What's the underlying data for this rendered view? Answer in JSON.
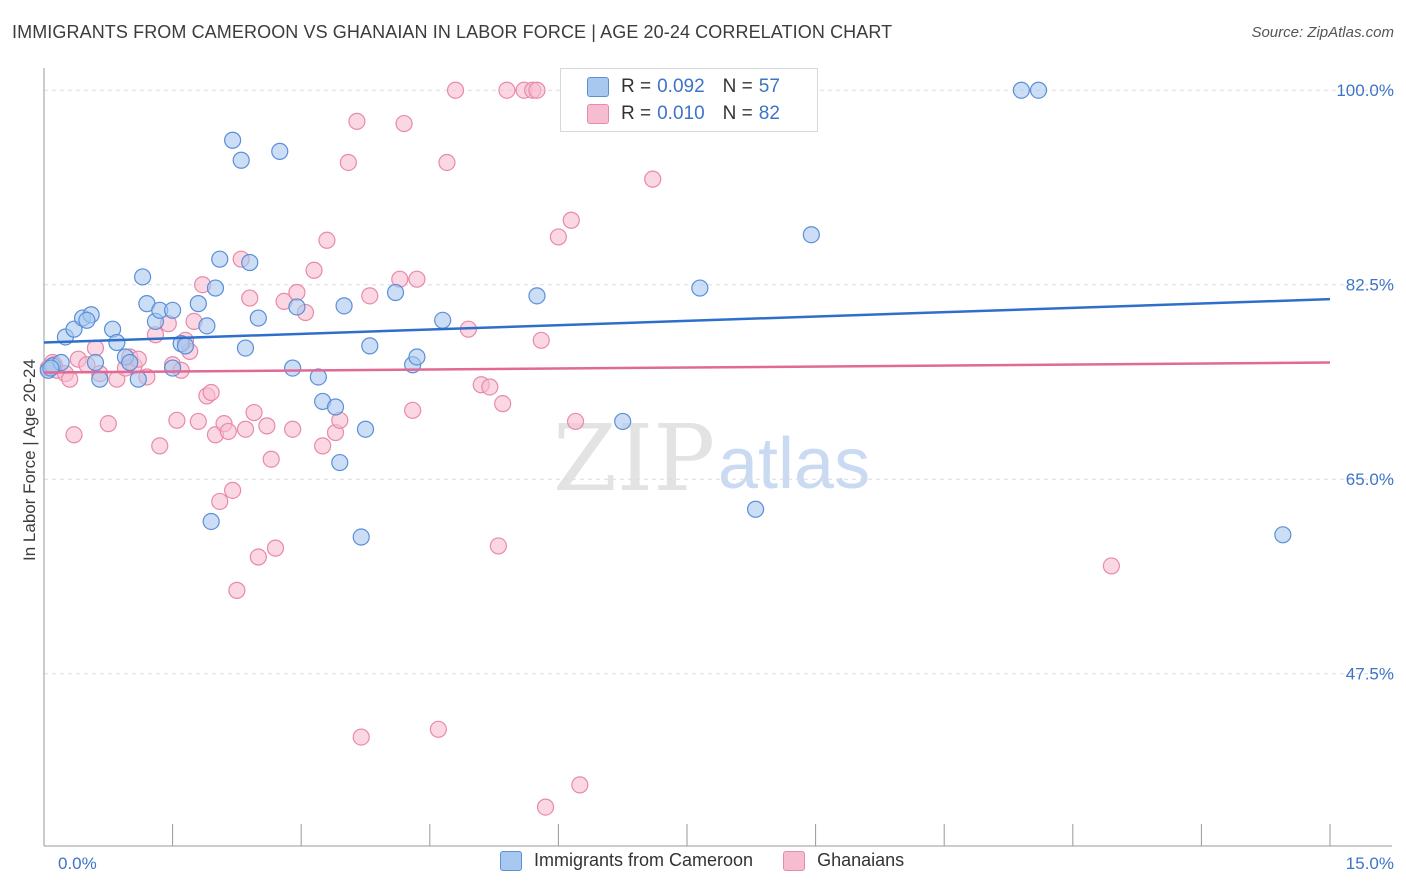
{
  "title": "IMMIGRANTS FROM CAMEROON VS GHANAIAN IN LABOR FORCE | AGE 20-24 CORRELATION CHART",
  "source": "Source: ZipAtlas.com",
  "watermark": {
    "zip": "ZIP",
    "atlas": "atlas"
  },
  "legend": {
    "r_label": "R =",
    "n_label": "N =",
    "series1": {
      "r": "0.092",
      "n": "57"
    },
    "series2": {
      "r": "0.010",
      "n": "82"
    }
  },
  "bottom_legend": {
    "series1": "Immigrants from Cameroon",
    "series2": "Ghanaians"
  },
  "colors": {
    "blue_fill": "#a9c8f0",
    "blue_stroke": "#5b8fd8",
    "blue_line": "#2f6fcc",
    "pink_fill": "#f6bcd0",
    "pink_stroke": "#e88aa8",
    "pink_line": "#e06a95",
    "tick_text": "#3d74c8",
    "grid": "#dcdcdc"
  },
  "chart_data": {
    "type": "scatter",
    "title": "IMMIGRANTS FROM CAMEROON VS GHANAIAN IN LABOR FORCE | AGE 20-24 CORRELATION CHART",
    "xlabel": "",
    "ylabel": "In Labor Force | Age 20-24",
    "xlim": [
      0,
      15
    ],
    "ylim": [
      32,
      102
    ],
    "x_tick_labels": [
      "0.0%",
      "15.0%"
    ],
    "y_ticks": [
      47.5,
      65.0,
      82.5,
      100.0
    ],
    "y_tick_labels": [
      "47.5%",
      "65.0%",
      "82.5%",
      "100.0%"
    ],
    "series": [
      {
        "name": "Immigrants from Cameroon",
        "trend": [
          [
            0,
            77.3
          ],
          [
            15,
            81.2
          ]
        ],
        "points": [
          [
            0.05,
            74.8
          ],
          [
            0.1,
            75.2
          ],
          [
            0.2,
            75.5
          ],
          [
            0.25,
            77.8
          ],
          [
            0.35,
            78.5
          ],
          [
            0.45,
            79.5
          ],
          [
            0.55,
            79.8
          ],
          [
            0.6,
            75.5
          ],
          [
            0.65,
            74.0
          ],
          [
            0.8,
            78.5
          ],
          [
            0.85,
            77.3
          ],
          [
            0.95,
            76.0
          ],
          [
            1.0,
            75.5
          ],
          [
            1.1,
            74.0
          ],
          [
            1.15,
            83.2
          ],
          [
            1.2,
            80.8
          ],
          [
            1.3,
            79.2
          ],
          [
            1.35,
            80.2
          ],
          [
            1.5,
            80.2
          ],
          [
            1.5,
            75.0
          ],
          [
            1.6,
            77.2
          ],
          [
            1.65,
            77.0
          ],
          [
            1.8,
            80.8
          ],
          [
            1.9,
            78.8
          ],
          [
            1.95,
            61.2
          ],
          [
            2.0,
            82.2
          ],
          [
            2.05,
            84.8
          ],
          [
            2.2,
            95.5
          ],
          [
            2.3,
            93.7
          ],
          [
            2.35,
            76.8
          ],
          [
            2.4,
            84.5
          ],
          [
            2.5,
            79.5
          ],
          [
            2.75,
            94.5
          ],
          [
            2.9,
            75.0
          ],
          [
            2.95,
            80.5
          ],
          [
            3.2,
            74.2
          ],
          [
            3.25,
            72.0
          ],
          [
            3.4,
            71.5
          ],
          [
            3.45,
            66.5
          ],
          [
            3.5,
            80.6
          ],
          [
            3.7,
            59.8
          ],
          [
            3.75,
            69.5
          ],
          [
            3.8,
            77.0
          ],
          [
            4.1,
            81.8
          ],
          [
            4.3,
            75.3
          ],
          [
            4.35,
            76.0
          ],
          [
            4.65,
            79.3
          ],
          [
            5.75,
            81.5
          ],
          [
            6.75,
            70.2
          ],
          [
            7.65,
            82.2
          ],
          [
            8.3,
            62.3
          ],
          [
            8.95,
            87.0
          ],
          [
            11.4,
            100.0
          ],
          [
            11.6,
            100.0
          ],
          [
            14.45,
            60.0
          ],
          [
            0.08,
            75.0
          ],
          [
            0.5,
            79.3
          ]
        ]
      },
      {
        "name": "Ghanaians",
        "trend": [
          [
            0,
            74.6
          ],
          [
            15,
            75.5
          ]
        ],
        "points": [
          [
            0.05,
            75.0
          ],
          [
            0.1,
            75.5
          ],
          [
            0.15,
            74.8
          ],
          [
            0.25,
            74.5
          ],
          [
            0.35,
            69.0
          ],
          [
            0.4,
            75.8
          ],
          [
            0.5,
            75.3
          ],
          [
            0.6,
            76.8
          ],
          [
            0.65,
            74.5
          ],
          [
            0.75,
            70.0
          ],
          [
            0.85,
            74.0
          ],
          [
            0.95,
            75.0
          ],
          [
            1.0,
            76.0
          ],
          [
            1.05,
            75.2
          ],
          [
            1.1,
            75.8
          ],
          [
            1.2,
            74.2
          ],
          [
            1.3,
            78.0
          ],
          [
            1.35,
            68.0
          ],
          [
            1.45,
            79.0
          ],
          [
            1.5,
            75.3
          ],
          [
            1.55,
            70.3
          ],
          [
            1.6,
            74.8
          ],
          [
            1.65,
            77.5
          ],
          [
            1.75,
            79.2
          ],
          [
            1.8,
            70.2
          ],
          [
            1.85,
            82.5
          ],
          [
            1.9,
            72.5
          ],
          [
            1.95,
            72.8
          ],
          [
            2.0,
            69.0
          ],
          [
            2.05,
            63.0
          ],
          [
            2.1,
            70.0
          ],
          [
            2.15,
            69.3
          ],
          [
            2.2,
            64.0
          ],
          [
            2.25,
            55.0
          ],
          [
            2.3,
            84.8
          ],
          [
            2.4,
            81.3
          ],
          [
            2.45,
            71.0
          ],
          [
            2.5,
            58.0
          ],
          [
            2.6,
            69.8
          ],
          [
            2.65,
            66.8
          ],
          [
            2.7,
            58.8
          ],
          [
            2.8,
            81.0
          ],
          [
            2.9,
            69.5
          ],
          [
            2.95,
            81.8
          ],
          [
            3.05,
            80.0
          ],
          [
            3.15,
            83.8
          ],
          [
            3.25,
            68.0
          ],
          [
            3.3,
            86.5
          ],
          [
            3.4,
            69.2
          ],
          [
            3.45,
            70.3
          ],
          [
            3.55,
            93.5
          ],
          [
            3.65,
            97.2
          ],
          [
            3.7,
            41.8
          ],
          [
            3.8,
            81.5
          ],
          [
            4.15,
            83.0
          ],
          [
            4.2,
            97.0
          ],
          [
            4.3,
            71.2
          ],
          [
            4.35,
            83.0
          ],
          [
            4.6,
            42.5
          ],
          [
            4.7,
            93.5
          ],
          [
            4.8,
            100.0
          ],
          [
            4.95,
            78.5
          ],
          [
            5.1,
            73.5
          ],
          [
            5.2,
            73.3
          ],
          [
            5.3,
            59.0
          ],
          [
            5.35,
            71.8
          ],
          [
            5.4,
            100.0
          ],
          [
            5.6,
            100.0
          ],
          [
            5.7,
            100.0
          ],
          [
            5.75,
            100.0
          ],
          [
            5.8,
            77.5
          ],
          [
            5.85,
            35.5
          ],
          [
            6.0,
            86.8
          ],
          [
            6.15,
            88.3
          ],
          [
            6.2,
            70.2
          ],
          [
            6.25,
            37.5
          ],
          [
            7.1,
            92.0
          ],
          [
            12.45,
            57.2
          ],
          [
            0.12,
            75.3
          ],
          [
            0.3,
            74.0
          ],
          [
            2.35,
            69.5
          ],
          [
            1.7,
            76.5
          ]
        ]
      }
    ]
  }
}
